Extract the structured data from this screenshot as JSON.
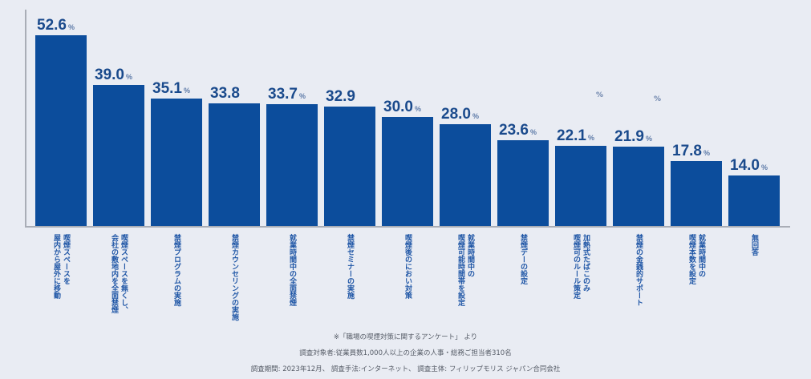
{
  "chart_data": {
    "type": "bar",
    "title": "",
    "xlabel": "",
    "ylabel": "",
    "unit": "%",
    "ylim": [
      0,
      55
    ],
    "grid": false,
    "legend": null,
    "bar_color": "#0c4d9c",
    "label_color": "#1f56a6",
    "value_color": "#1a4a8c",
    "categories": [
      "喫煙スペースを\n屋内から屋外に移動",
      "喫煙スペースを無くし、\n会社の敷地内を全面禁煙",
      "禁煙プログラムの実施",
      "禁煙カウンセリングの実施",
      "就業時間中の全面禁煙",
      "禁煙セミナーの実施",
      "喫煙後のにおい対策",
      "就業時間中の\n喫煙可能時間帯を設定",
      "禁煙デーの設定",
      "加熱式たばこのみ\n喫煙可のルール策定",
      "禁煙の金銭的サポート",
      "就業時間中の\n喫煙本数を設定",
      "無回答"
    ],
    "values": [
      52.6,
      39.0,
      35.1,
      33.8,
      33.7,
      32.9,
      30.0,
      28.0,
      23.6,
      22.1,
      21.9,
      17.8,
      14.0
    ],
    "value_labels": [
      "52.6",
      "39.0",
      "35.1",
      "33.8",
      "33.7",
      "32.9",
      "30.0",
      "28.0",
      "23.6",
      "22.1",
      "21.9",
      "17.8",
      "14.0"
    ],
    "show_pct_suffix": [
      true,
      true,
      true,
      false,
      true,
      false,
      true,
      true,
      true,
      true,
      true,
      true,
      true
    ],
    "stray_pct_marks": [
      {
        "text": "%",
        "x": 743,
        "y": 114
      },
      {
        "text": "%",
        "x": 815,
        "y": 119
      }
    ]
  },
  "footer": {
    "source": "※「職場の喫煙対策に関するアンケート」 より",
    "target": "調査対象者:従業員数1,000人以上の企業の人事・総務ご担当者310名",
    "details": "調査期間: 2023年12月、 調査手法:インターネット、 調査主体: フィリップモリス ジャパン合同会社"
  }
}
